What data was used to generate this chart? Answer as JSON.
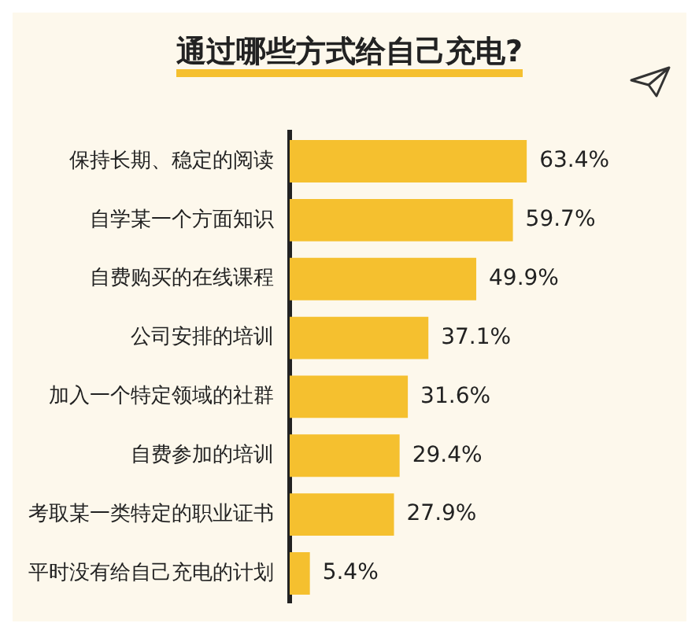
{
  "chart_data": {
    "type": "bar",
    "orientation": "horizontal",
    "title": "通过哪些方式给自己充电?",
    "categories": [
      "保持长期、稳定的阅读",
      "自学某一个方面知识",
      "自费购买的在线课程",
      "公司安排的培训",
      "加入一个特定领域的社群",
      "自费参加的培训",
      "考取某一类特定的职业证书",
      "平时没有给自己充电的计划"
    ],
    "values": [
      63.4,
      59.7,
      49.9,
      37.1,
      31.6,
      29.4,
      27.9,
      5.4
    ],
    "value_labels": [
      "63.4%",
      "59.7%",
      "49.9%",
      "37.1%",
      "31.6%",
      "29.4%",
      "27.9%",
      "5.4%"
    ],
    "color": "#f5c02f",
    "grid": false,
    "legend": false
  }
}
